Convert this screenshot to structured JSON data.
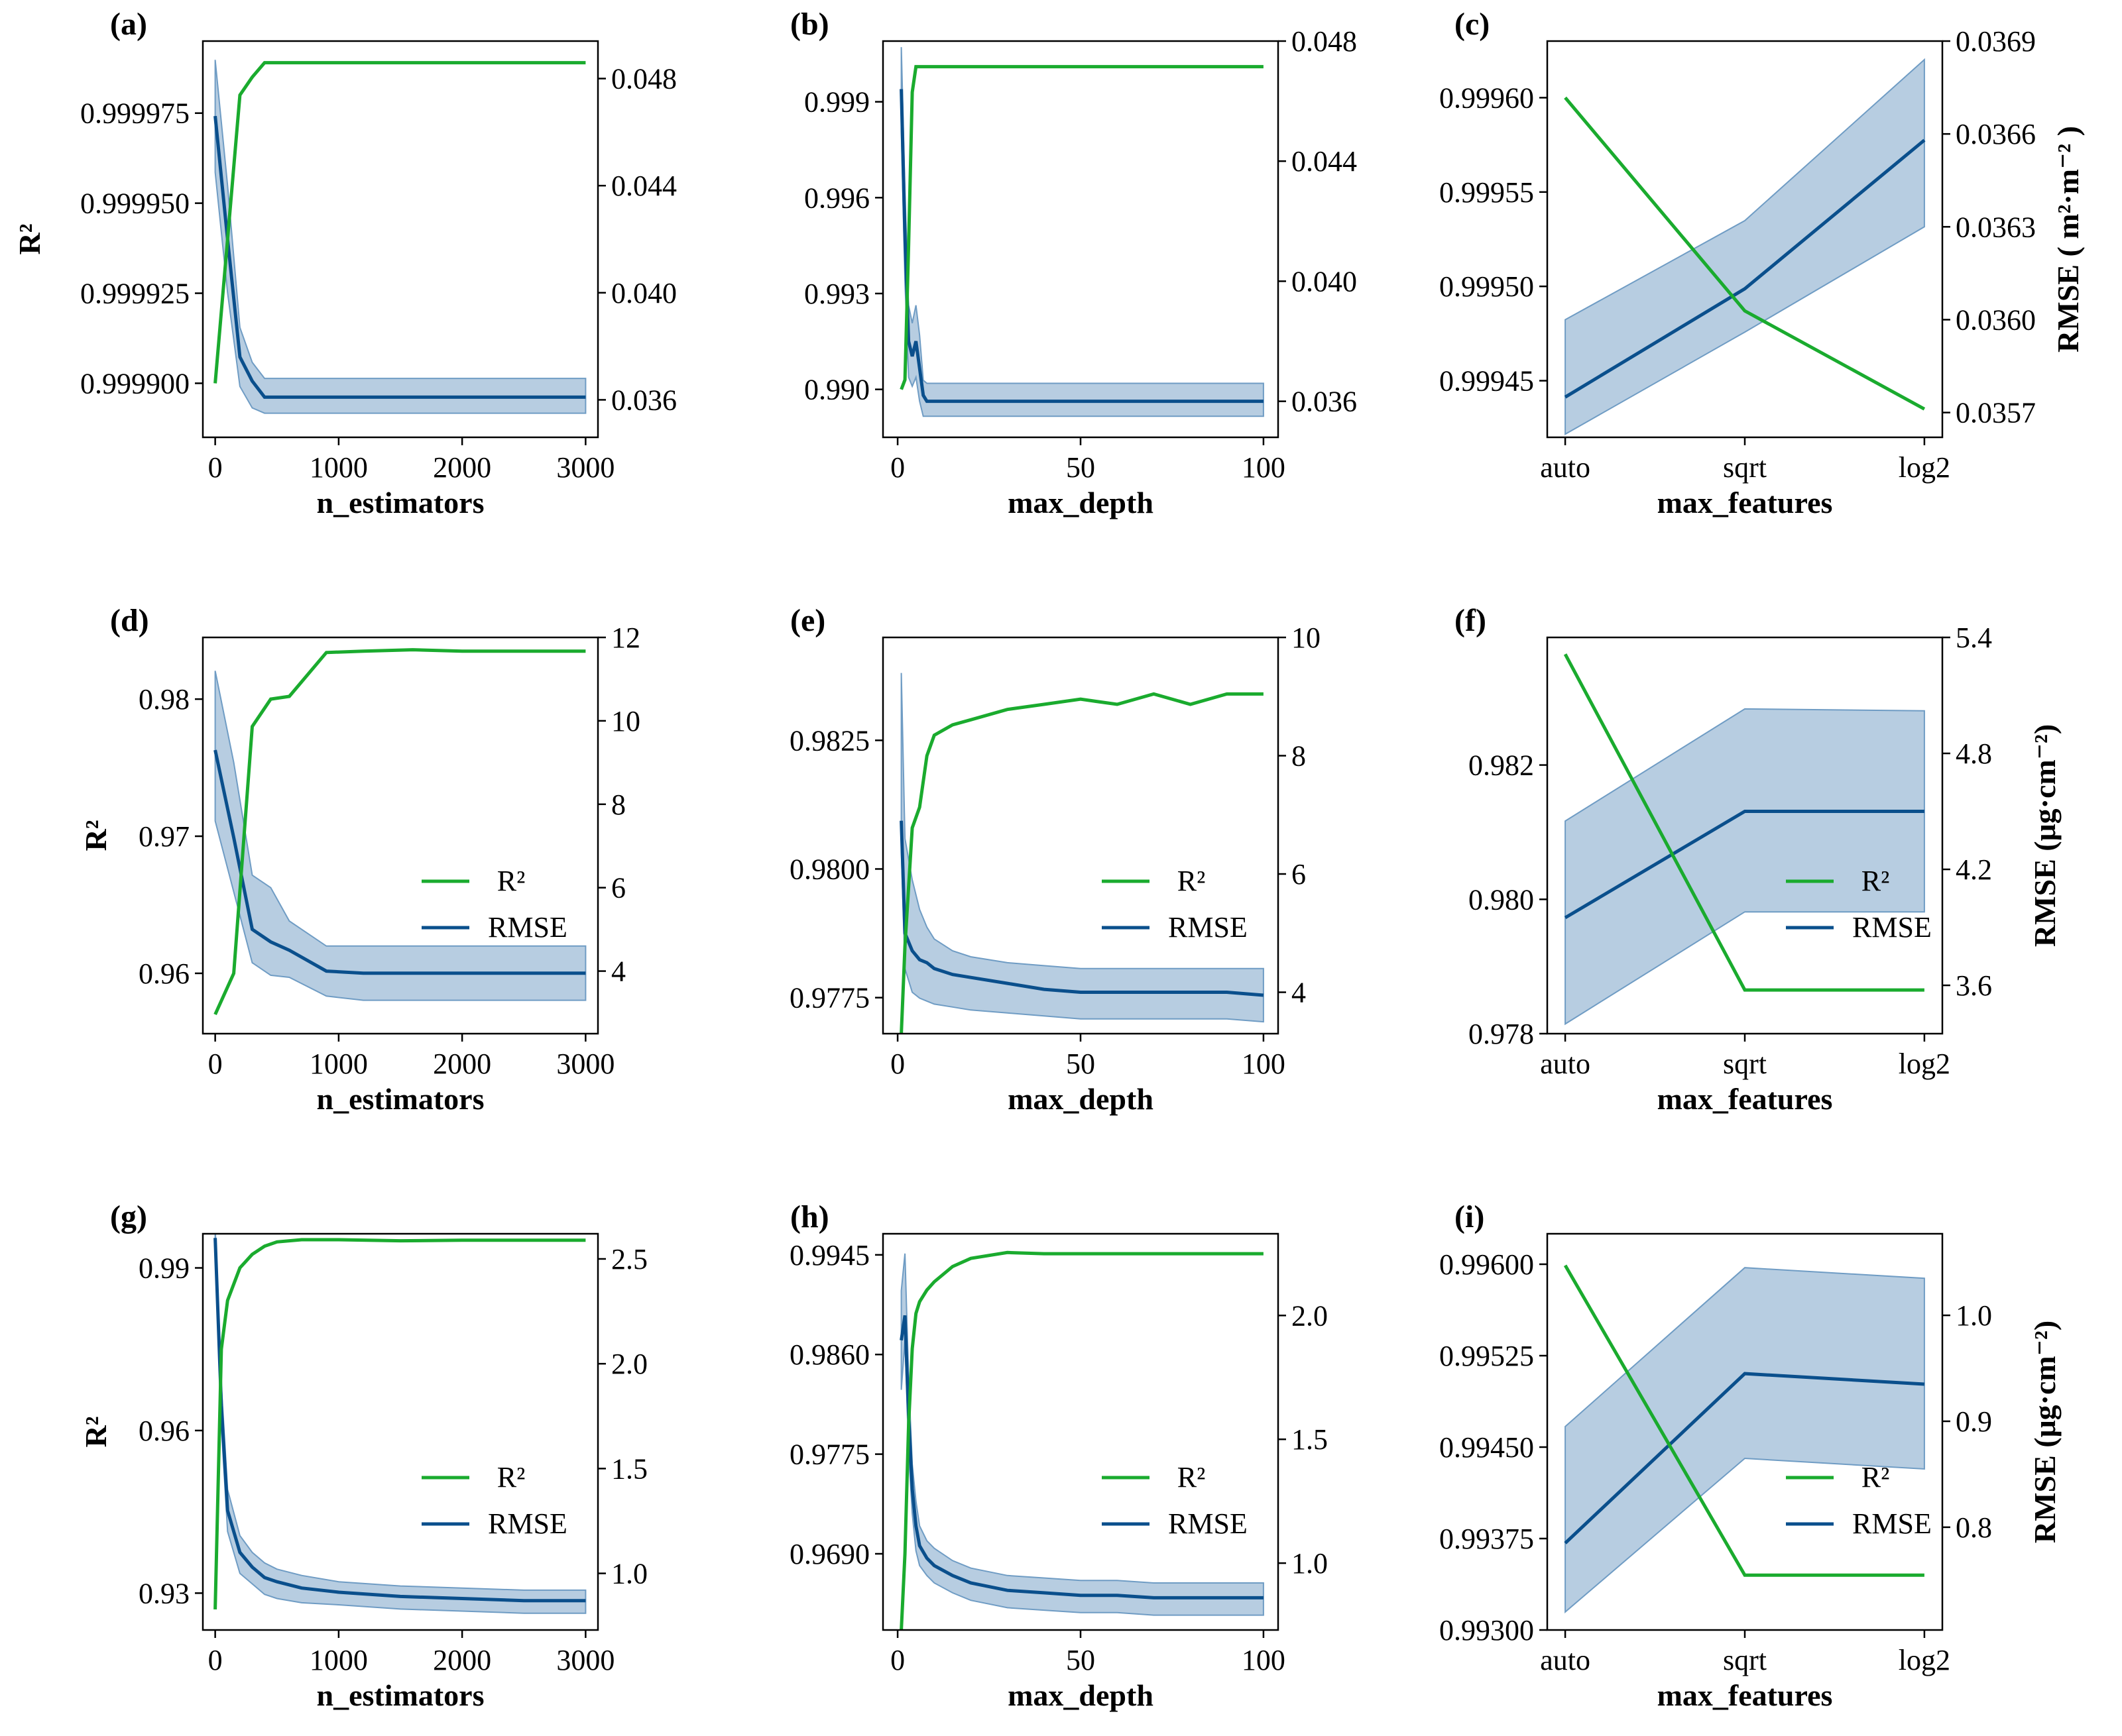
{
  "figure": {
    "colors": {
      "r2": "#1aab2e",
      "rmse": "#0a4f8c",
      "band": "#6f9cc4"
    },
    "legend": {
      "r2": "R²",
      "rmse": "RMSE"
    }
  },
  "chart_data": [
    {
      "id": "a",
      "label": "(a)",
      "type": "line",
      "xlabel": "n_estimators",
      "ylabel": "R²",
      "y2label": "",
      "x_kind": "numeric",
      "xlim": [
        -100,
        3100
      ],
      "xticks": [
        0,
        1000,
        2000,
        3000
      ],
      "xtick_labels": [
        "0",
        "1000",
        "2000",
        "3000"
      ],
      "ylim": [
        0.999885,
        0.999995
      ],
      "yticks": [
        0.9999,
        0.999925,
        0.99995,
        0.999975
      ],
      "ytick_labels": [
        "0.999900",
        "0.999925",
        "0.999950",
        "0.999975"
      ],
      "y2lim": [
        0.0346,
        0.0494
      ],
      "y2ticks": [
        0.036,
        0.04,
        0.044,
        0.048
      ],
      "y2tick_labels": [
        "0.036",
        "0.040",
        "0.044",
        "0.048"
      ],
      "legend": false,
      "x": [
        0,
        100,
        200,
        300,
        400,
        600,
        1000,
        1500,
        2000,
        2500,
        3000
      ],
      "r2": [
        0.9999,
        0.99994,
        0.99998,
        0.999985,
        0.999989,
        0.999989,
        0.999989,
        0.999989,
        0.999989,
        0.999989,
        0.999989
      ],
      "rmse": [
        0.0466,
        0.042,
        0.0376,
        0.0367,
        0.0361,
        0.0361,
        0.0361,
        0.0361,
        0.0361,
        0.0361,
        0.0361
      ],
      "rmse_lower": [
        0.0445,
        0.04,
        0.0365,
        0.0357,
        0.0355,
        0.0355,
        0.0355,
        0.0355,
        0.0355,
        0.0355,
        0.0355
      ],
      "rmse_upper": [
        0.0487,
        0.044,
        0.0387,
        0.0374,
        0.0368,
        0.0368,
        0.0368,
        0.0368,
        0.0368,
        0.0368,
        0.0368
      ]
    },
    {
      "id": "b",
      "label": "(b)",
      "type": "line",
      "xlabel": "max_depth",
      "ylabel": "",
      "y2label": "",
      "x_kind": "numeric",
      "xlim": [
        -4,
        104
      ],
      "xticks": [
        0,
        50,
        100
      ],
      "xtick_labels": [
        "0",
        "50",
        "100"
      ],
      "ylim": [
        0.9885,
        1.0009
      ],
      "yticks": [
        0.99,
        0.993,
        0.996,
        0.999
      ],
      "ytick_labels": [
        "0.990",
        "0.993",
        "0.996",
        "0.999"
      ],
      "y2lim": [
        0.0348,
        0.048
      ],
      "y2ticks": [
        0.036,
        0.04,
        0.044,
        0.048
      ],
      "y2tick_labels": [
        "0.036",
        "0.040",
        "0.044",
        "0.048"
      ],
      "legend": false,
      "x": [
        1,
        2,
        3,
        4,
        5,
        6,
        7,
        8,
        9,
        10,
        20,
        40,
        60,
        80,
        100
      ],
      "r2": [
        0.99,
        0.9903,
        0.9945,
        0.9993,
        1.0001,
        1.0001,
        1.0001,
        1.0001,
        1.0001,
        1.0001,
        1.0001,
        1.0001,
        1.0001,
        1.0001,
        1.0001
      ],
      "rmse": [
        0.0464,
        0.0415,
        0.038,
        0.0375,
        0.038,
        0.0371,
        0.0362,
        0.036,
        0.036,
        0.036,
        0.036,
        0.036,
        0.036,
        0.036,
        0.036
      ],
      "rmse_lower": [
        0.045,
        0.04,
        0.0368,
        0.0365,
        0.0368,
        0.036,
        0.0355,
        0.0355,
        0.0355,
        0.0355,
        0.0355,
        0.0355,
        0.0355,
        0.0355,
        0.0355
      ],
      "rmse_upper": [
        0.0478,
        0.043,
        0.0392,
        0.0386,
        0.0392,
        0.0382,
        0.0367,
        0.0366,
        0.0366,
        0.0366,
        0.0366,
        0.0366,
        0.0366,
        0.0366,
        0.0366
      ]
    },
    {
      "id": "c",
      "label": "(c)",
      "type": "line",
      "xlabel": "max_features",
      "ylabel": "",
      "y2label": "RMSE ( m²·m⁻² )",
      "x_kind": "category",
      "xlim": [
        -0.1,
        2.1
      ],
      "xticks": [
        0,
        1,
        2
      ],
      "xtick_labels": [
        "auto",
        "sqrt",
        "log2"
      ],
      "ylim": [
        0.99942,
        0.99963
      ],
      "yticks": [
        0.99945,
        0.9995,
        0.99955,
        0.9996
      ],
      "ytick_labels": [
        "0.99945",
        "0.99950",
        "0.99955",
        "0.99960"
      ],
      "y2lim": [
        0.03562,
        0.0369
      ],
      "y2ticks": [
        0.0357,
        0.036,
        0.0363,
        0.0366,
        0.0369
      ],
      "y2tick_labels": [
        "0.0357",
        "0.0360",
        "0.0363",
        "0.0366",
        "0.0369"
      ],
      "legend": false,
      "x": [
        0,
        1,
        2
      ],
      "r2": [
        0.9996,
        0.999487,
        0.999435
      ],
      "rmse": [
        0.03575,
        0.0361,
        0.03658
      ],
      "rmse_lower": [
        0.03563,
        0.03596,
        0.0363
      ],
      "rmse_upper": [
        0.036,
        0.03632,
        0.03684
      ]
    },
    {
      "id": "d",
      "label": "(d)",
      "type": "line",
      "xlabel": "n_estimators",
      "ylabel": "R²",
      "y2label": "",
      "x_kind": "numeric",
      "xlim": [
        -100,
        3100
      ],
      "xticks": [
        0,
        1000,
        2000,
        3000
      ],
      "xtick_labels": [
        "0",
        "1000",
        "2000",
        "3000"
      ],
      "ylim": [
        0.9556,
        0.9845
      ],
      "yticks": [
        0.96,
        0.97,
        0.98
      ],
      "ytick_labels": [
        "0.96",
        "0.97",
        "0.98"
      ],
      "y2lim": [
        2.5,
        12
      ],
      "y2ticks": [
        4,
        6,
        8,
        10,
        12
      ],
      "y2tick_labels": [
        "4",
        "6",
        "8",
        "10",
        "12"
      ],
      "legend": true,
      "x": [
        0,
        150,
        300,
        450,
        600,
        900,
        1200,
        1600,
        2000,
        2500,
        3000
      ],
      "r2": [
        0.957,
        0.96,
        0.978,
        0.98,
        0.9802,
        0.9834,
        0.9835,
        0.9836,
        0.9835,
        0.9835,
        0.9835
      ],
      "rmse": [
        9.3,
        7.2,
        5.0,
        4.7,
        4.5,
        4.0,
        3.95,
        3.95,
        3.95,
        3.95,
        3.95
      ],
      "rmse_lower": [
        7.6,
        5.9,
        4.2,
        3.9,
        3.85,
        3.4,
        3.3,
        3.3,
        3.3,
        3.3,
        3.3
      ],
      "rmse_upper": [
        11.2,
        9.0,
        6.3,
        6.0,
        5.2,
        4.6,
        4.6,
        4.6,
        4.6,
        4.6,
        4.6
      ]
    },
    {
      "id": "e",
      "label": "(e)",
      "type": "line",
      "xlabel": "max_depth",
      "ylabel": "",
      "y2label": "",
      "x_kind": "numeric",
      "xlim": [
        -4,
        104
      ],
      "xticks": [
        0,
        50,
        100
      ],
      "xtick_labels": [
        "0",
        "50",
        "100"
      ],
      "ylim": [
        0.9768,
        0.9845
      ],
      "yticks": [
        0.9775,
        0.98,
        0.9825
      ],
      "ytick_labels": [
        "0.9775",
        "0.9800",
        "0.9825"
      ],
      "y2lim": [
        3.3,
        10
      ],
      "y2ticks": [
        4,
        6,
        8,
        10
      ],
      "y2tick_labels": [
        "4",
        "6",
        "8",
        "10"
      ],
      "legend": true,
      "x": [
        1,
        2,
        4,
        6,
        8,
        10,
        15,
        20,
        30,
        40,
        50,
        60,
        70,
        80,
        90,
        100
      ],
      "r2": [
        0.9768,
        0.9785,
        0.9808,
        0.9812,
        0.9822,
        0.9826,
        0.9828,
        0.9829,
        0.9831,
        0.9832,
        0.9833,
        0.9832,
        0.9834,
        0.9832,
        0.9834,
        0.9834
      ],
      "rmse": [
        6.9,
        5.0,
        4.7,
        4.55,
        4.5,
        4.4,
        4.3,
        4.25,
        4.15,
        4.05,
        4.0,
        4.0,
        4.0,
        4.0,
        4.0,
        3.95
      ],
      "rmse_lower": [
        6.4,
        4.4,
        4.0,
        3.9,
        3.85,
        3.8,
        3.75,
        3.7,
        3.65,
        3.6,
        3.55,
        3.55,
        3.55,
        3.55,
        3.55,
        3.5
      ],
      "rmse_upper": [
        9.4,
        6.6,
        5.9,
        5.4,
        5.1,
        4.9,
        4.7,
        4.6,
        4.5,
        4.45,
        4.4,
        4.4,
        4.4,
        4.4,
        4.4,
        4.4
      ]
    },
    {
      "id": "f",
      "label": "(f)",
      "type": "line",
      "xlabel": "max_features",
      "ylabel": "",
      "y2label": "RMSE (μg·cm⁻²)",
      "x_kind": "category",
      "xlim": [
        -0.1,
        2.1
      ],
      "xticks": [
        0,
        1,
        2
      ],
      "xtick_labels": [
        "auto",
        "sqrt",
        "log2"
      ],
      "ylim": [
        0.978,
        0.9839
      ],
      "yticks": [
        0.978,
        0.98,
        0.982
      ],
      "ytick_labels": [
        "0.978",
        "0.980",
        "0.982"
      ],
      "y2lim": [
        3.35,
        5.4
      ],
      "y2ticks": [
        3.6,
        4.2,
        4.8,
        5.4
      ],
      "y2tick_labels": [
        "3.6",
        "4.2",
        "4.8",
        "5.4"
      ],
      "legend": true,
      "x": [
        0,
        1,
        2
      ],
      "r2": [
        0.98365,
        0.97865,
        0.97865
      ],
      "rmse": [
        3.95,
        4.5,
        4.5
      ],
      "rmse_lower": [
        3.4,
        3.98,
        3.98
      ],
      "rmse_upper": [
        4.45,
        5.03,
        5.02
      ]
    },
    {
      "id": "g",
      "label": "(g)",
      "type": "line",
      "xlabel": "n_estimators",
      "ylabel": "R²",
      "y2label": "",
      "x_kind": "numeric",
      "xlim": [
        -100,
        3100
      ],
      "xticks": [
        0,
        1000,
        2000,
        3000
      ],
      "xtick_labels": [
        "0",
        "1000",
        "2000",
        "3000"
      ],
      "ylim": [
        0.9232,
        0.9963
      ],
      "yticks": [
        0.93,
        0.96,
        0.99
      ],
      "ytick_labels": [
        "0.93",
        "0.96",
        "0.99"
      ],
      "y2lim": [
        0.73,
        2.62
      ],
      "y2ticks": [
        1.0,
        1.5,
        2.0,
        2.5
      ],
      "y2tick_labels": [
        "1.0",
        "1.5",
        "2.0",
        "2.5"
      ],
      "legend": true,
      "x": [
        0,
        50,
        100,
        200,
        300,
        400,
        500,
        700,
        1000,
        1500,
        2000,
        2500,
        3000
      ],
      "r2": [
        0.927,
        0.975,
        0.984,
        0.99,
        0.9925,
        0.994,
        0.9948,
        0.9952,
        0.9952,
        0.995,
        0.9951,
        0.9951,
        0.9951
      ],
      "rmse": [
        2.6,
        1.8,
        1.3,
        1.1,
        1.03,
        0.98,
        0.96,
        0.93,
        0.91,
        0.89,
        0.88,
        0.87,
        0.87
      ],
      "rmse_lower": [
        2.55,
        1.7,
        1.2,
        1.0,
        0.95,
        0.9,
        0.88,
        0.86,
        0.85,
        0.83,
        0.82,
        0.81,
        0.81
      ],
      "rmse_upper": [
        2.65,
        1.9,
        1.4,
        1.18,
        1.1,
        1.05,
        1.02,
        0.99,
        0.96,
        0.94,
        0.93,
        0.92,
        0.92
      ]
    },
    {
      "id": "h",
      "label": "(h)",
      "type": "line",
      "xlabel": "max_depth",
      "ylabel": "",
      "y2label": "",
      "x_kind": "numeric",
      "xlim": [
        -4,
        104
      ],
      "xticks": [
        0,
        50,
        100
      ],
      "xtick_labels": [
        "0",
        "50",
        "100"
      ],
      "ylim": [
        0.9625,
        0.9963
      ],
      "yticks": [
        0.969,
        0.9775,
        0.986,
        0.9945
      ],
      "ytick_labels": [
        "0.9690",
        "0.9775",
        "0.9860",
        "0.9945"
      ],
      "y2lim": [
        0.73,
        2.33
      ],
      "y2ticks": [
        1.0,
        1.5,
        2.0
      ],
      "y2tick_labels": [
        "1.0",
        "1.5",
        "2.0"
      ],
      "legend": true,
      "x": [
        1,
        2,
        3,
        4,
        5,
        6,
        8,
        10,
        15,
        20,
        30,
        40,
        50,
        60,
        70,
        80,
        90,
        100
      ],
      "r2": [
        0.9625,
        0.969,
        0.98,
        0.9865,
        0.9895,
        0.9905,
        0.9915,
        0.9922,
        0.9935,
        0.9942,
        0.9947,
        0.9946,
        0.9946,
        0.9946,
        0.9946,
        0.9946,
        0.9946,
        0.9946
      ],
      "rmse": [
        1.9,
        2.0,
        1.6,
        1.3,
        1.15,
        1.07,
        1.02,
        0.99,
        0.95,
        0.92,
        0.89,
        0.88,
        0.87,
        0.87,
        0.86,
        0.86,
        0.86,
        0.86
      ],
      "rmse_lower": [
        1.7,
        1.9,
        1.45,
        1.2,
        1.05,
        0.99,
        0.95,
        0.92,
        0.88,
        0.85,
        0.82,
        0.81,
        0.8,
        0.8,
        0.79,
        0.79,
        0.79,
        0.79
      ],
      "rmse_upper": [
        2.1,
        2.25,
        1.75,
        1.4,
        1.25,
        1.15,
        1.09,
        1.06,
        1.01,
        0.98,
        0.95,
        0.94,
        0.93,
        0.93,
        0.92,
        0.92,
        0.92,
        0.92
      ]
    },
    {
      "id": "i",
      "label": "(i)",
      "type": "line",
      "xlabel": "max_features",
      "ylabel": "",
      "y2label": "RMSE (μg·cm⁻²)",
      "x_kind": "category",
      "xlim": [
        -0.1,
        2.1
      ],
      "xticks": [
        0,
        1,
        2
      ],
      "xtick_labels": [
        "auto",
        "sqrt",
        "log2"
      ],
      "ylim": [
        0.993,
        0.99625
      ],
      "yticks": [
        0.993,
        0.99375,
        0.9945,
        0.99525,
        0.996
      ],
      "ytick_labels": [
        "0.99300",
        "0.99375",
        "0.99450",
        "0.99525",
        "0.99600"
      ],
      "y2lim": [
        0.703,
        1.077
      ],
      "y2ticks": [
        0.8,
        0.9,
        1.0
      ],
      "y2tick_labels": [
        "0.8",
        "0.9",
        "1.0"
      ],
      "legend": true,
      "x": [
        0,
        1,
        2
      ],
      "r2": [
        0.99599,
        0.99345,
        0.99345
      ],
      "rmse": [
        0.785,
        0.945,
        0.935
      ],
      "rmse_lower": [
        0.72,
        0.865,
        0.855
      ],
      "rmse_upper": [
        0.895,
        1.045,
        1.035
      ]
    }
  ]
}
